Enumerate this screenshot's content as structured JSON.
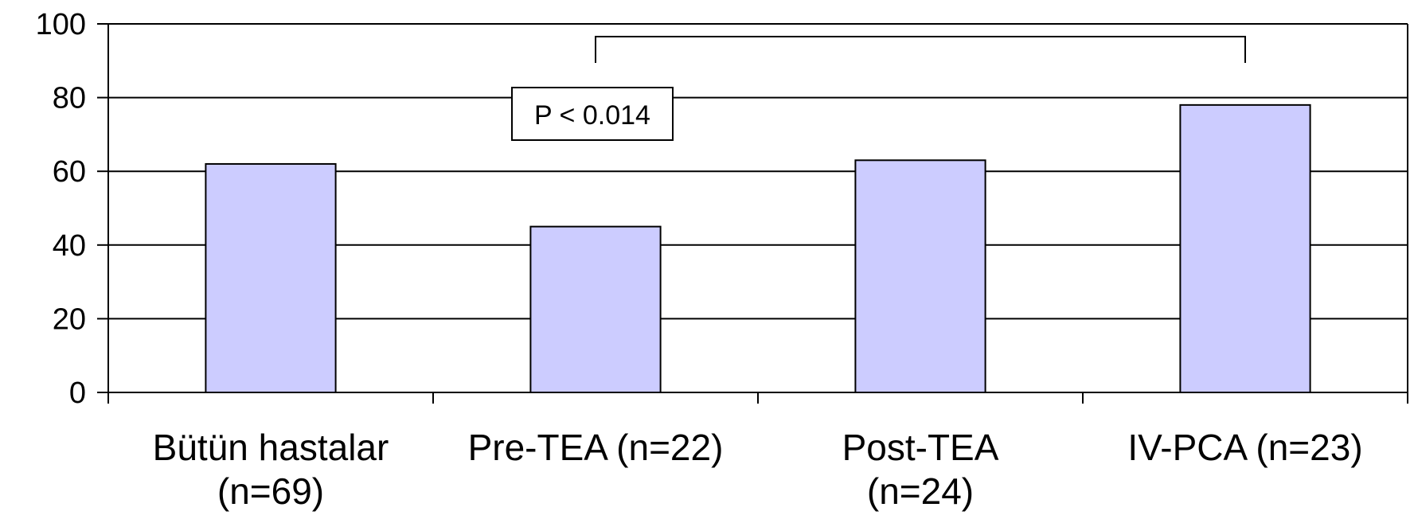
{
  "chart_data": {
    "type": "bar",
    "categories": [
      [
        "Bütün hastalar",
        "(n=69)"
      ],
      [
        "Pre-TEA (n=22)"
      ],
      [
        "Post-TEA",
        "(n=24)"
      ],
      [
        "IV-PCA    (n=23)"
      ]
    ],
    "values": [
      62,
      45,
      63,
      78
    ],
    "title": "",
    "xlabel": "",
    "ylabel": "",
    "ylim": [
      0,
      100
    ],
    "yticks": [
      0,
      20,
      40,
      60,
      80,
      100
    ],
    "grid": true,
    "bar_color": "#ccccff",
    "annotation": {
      "text": "P < 0.014",
      "bracket_from_category": 1,
      "bracket_to_category": 3
    }
  }
}
